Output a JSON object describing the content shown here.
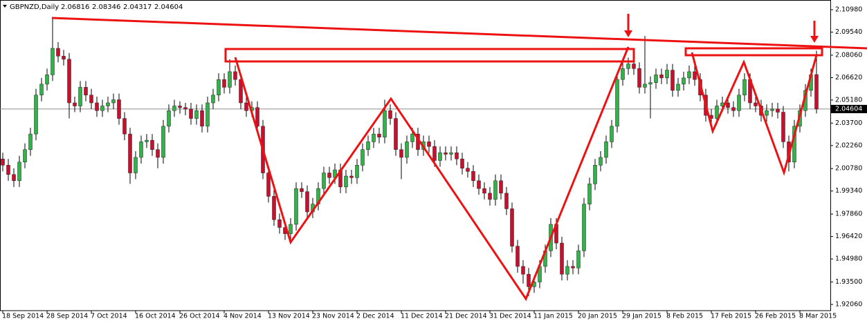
{
  "chart_data": {
    "type": "candlestick",
    "title": "GBPNZD,Daily",
    "up_color": "#33b24a",
    "down_color": "#c8102e",
    "wick_color": "#000000",
    "price_line_color": "#8c8c8c",
    "ylim": [
      1.9166,
      2.1147
    ],
    "yticks": [
      {
        "value": 2.1098,
        "label": "2.10980"
      },
      {
        "value": 2.0954,
        "label": "2.09540"
      },
      {
        "value": 2.0806,
        "label": "2.08060"
      },
      {
        "value": 2.0662,
        "label": "2.06620"
      },
      {
        "value": 2.0518,
        "label": "2.05180"
      },
      {
        "value": 2.037,
        "label": "2.03700"
      },
      {
        "value": 2.0226,
        "label": "2.02260"
      },
      {
        "value": 2.0078,
        "label": "2.00780"
      },
      {
        "value": 1.9934,
        "label": "1.99340"
      },
      {
        "value": 1.9786,
        "label": "1.97860"
      },
      {
        "value": 1.9642,
        "label": "1.96420"
      },
      {
        "value": 1.9498,
        "label": "1.94980"
      },
      {
        "value": 1.935,
        "label": "1.93500"
      },
      {
        "value": 1.9206,
        "label": "1.92060"
      }
    ],
    "categories": [
      "18 Sep 2014",
      null,
      null,
      null,
      null,
      null,
      null,
      null,
      "28 Sep 2014",
      null,
      null,
      null,
      null,
      null,
      null,
      null,
      "7 Oct 2014",
      null,
      null,
      null,
      null,
      null,
      null,
      null,
      "16 Oct 2014",
      null,
      null,
      null,
      null,
      null,
      null,
      null,
      "26 Oct 2014",
      null,
      null,
      null,
      null,
      null,
      null,
      null,
      "4 Nov 2014",
      null,
      null,
      null,
      null,
      null,
      null,
      null,
      "13 Nov 2014",
      null,
      null,
      null,
      null,
      null,
      null,
      null,
      "23 Nov 2014",
      null,
      null,
      null,
      null,
      null,
      null,
      null,
      "2 Dec 2014",
      null,
      null,
      null,
      null,
      null,
      null,
      null,
      "11 Dec 2014",
      null,
      null,
      null,
      null,
      null,
      null,
      null,
      "21 Dec 2014",
      null,
      null,
      null,
      null,
      null,
      null,
      null,
      "31 Dec 2014",
      null,
      null,
      null,
      null,
      null,
      null,
      null,
      "11 Jan 2015",
      null,
      null,
      null,
      null,
      null,
      null,
      null,
      "20 Jan 2015",
      null,
      null,
      null,
      null,
      null,
      null,
      null,
      "29 Jan 2015",
      null,
      null,
      null,
      null,
      null,
      null,
      null,
      "8 Feb 2015",
      null,
      null,
      null,
      null,
      null,
      null,
      null,
      "17 Feb 2015",
      null,
      null,
      null,
      null,
      null,
      null,
      null,
      "26 Feb 2015",
      null,
      null,
      null,
      null,
      null,
      null,
      null,
      "8 Mar 2015",
      null,
      null,
      null
    ],
    "open": [
      2.014,
      2.01,
      2.004,
      2.0,
      2.012,
      2.02,
      2.03,
      2.055,
      2.062,
      2.068,
      2.085,
      2.08,
      2.078,
      2.05,
      2.048,
      2.06,
      2.055,
      2.05,
      2.045,
      2.048,
      2.05,
      2.052,
      2.04,
      2.03,
      2.005,
      2.015,
      2.025,
      2.026,
      2.02,
      2.015,
      2.035,
      2.045,
      2.048,
      2.047,
      2.046,
      2.04,
      2.045,
      2.035,
      2.05,
      2.055,
      2.065,
      2.06,
      2.07,
      2.065,
      2.05,
      2.045,
      2.047,
      2.035,
      2.005,
      1.99,
      1.975,
      1.97,
      1.966,
      1.972,
      1.995,
      1.993,
      1.98,
      1.985,
      1.995,
      2.005,
      2.002,
      2.007,
      1.996,
      2.003,
      2.002,
      2.01,
      2.02,
      2.025,
      2.03,
      2.028,
      2.045,
      2.04,
      2.02,
      2.015,
      2.025,
      2.03,
      2.02,
      2.025,
      2.022,
      2.013,
      2.018,
      2.017,
      2.018,
      2.014,
      2.008,
      2.006,
      2.0,
      1.995,
      1.992,
      1.988,
      2.0,
      1.992,
      1.982,
      1.958,
      1.945,
      1.94,
      1.932,
      1.935,
      1.945,
      1.955,
      1.972,
      1.96,
      1.94,
      1.945,
      1.944,
      1.955,
      1.985,
      1.998,
      2.01,
      2.015,
      2.025,
      2.035,
      2.065,
      2.072,
      2.075,
      2.072,
      2.06,
      2.062,
      2.063,
      2.068,
      2.066,
      2.071,
      2.058,
      2.062,
      2.066,
      2.07,
      2.065,
      2.055,
      2.042,
      2.04,
      2.048,
      2.05,
      2.047,
      2.045,
      2.055,
      2.065,
      2.05,
      2.048,
      2.042,
      2.045,
      2.046,
      2.044,
      2.025,
      2.012,
      2.035,
      2.045,
      2.058,
      2.06816
    ],
    "high": [
      2.018,
      2.014,
      2.008,
      2.016,
      2.024,
      2.034,
      2.059,
      2.066,
      2.072,
      2.105,
      2.089,
      2.084,
      2.082,
      2.054,
      2.064,
      2.064,
      2.059,
      2.054,
      2.052,
      2.054,
      2.056,
      2.056,
      2.044,
      2.034,
      2.019,
      2.029,
      2.03,
      2.03,
      2.024,
      2.039,
      2.049,
      2.052,
      2.051,
      2.05,
      2.05,
      2.049,
      2.049,
      2.054,
      2.059,
      2.069,
      2.069,
      2.078,
      2.074,
      2.069,
      2.054,
      2.051,
      2.051,
      2.039,
      2.009,
      1.994,
      1.979,
      1.974,
      1.976,
      1.999,
      1.999,
      1.997,
      1.989,
      1.999,
      2.009,
      2.009,
      2.011,
      2.011,
      2.007,
      2.007,
      2.014,
      2.024,
      2.029,
      2.034,
      2.034,
      2.052,
      2.049,
      2.044,
      2.024,
      2.029,
      2.034,
      2.034,
      2.029,
      2.029,
      2.026,
      2.022,
      2.022,
      2.022,
      2.022,
      2.018,
      2.012,
      2.01,
      2.004,
      1.999,
      1.996,
      2.004,
      2.004,
      1.996,
      1.986,
      1.962,
      1.949,
      1.944,
      1.939,
      1.949,
      1.959,
      1.976,
      1.976,
      1.964,
      1.949,
      1.949,
      1.959,
      1.989,
      2.002,
      2.014,
      2.019,
      2.029,
      2.039,
      2.069,
      2.076,
      2.079,
      2.079,
      2.076,
      2.093,
      2.067,
      2.072,
      2.072,
      2.075,
      2.075,
      2.066,
      2.07,
      2.074,
      2.074,
      2.069,
      2.059,
      2.046,
      2.052,
      2.054,
      2.054,
      2.051,
      2.059,
      2.069,
      2.069,
      2.054,
      2.052,
      2.049,
      2.05,
      2.05,
      2.048,
      2.029,
      2.039,
      2.049,
      2.062,
      2.072,
      2.08346
    ],
    "low": [
      2.006,
      2.0,
      1.996,
      1.996,
      2.008,
      2.016,
      2.026,
      2.051,
      2.058,
      2.064,
      2.076,
      2.074,
      2.04,
      2.044,
      2.044,
      2.051,
      2.046,
      2.041,
      2.041,
      2.044,
      2.046,
      2.036,
      2.026,
      1.998,
      2.001,
      2.011,
      2.021,
      2.016,
      2.008,
      2.011,
      2.031,
      2.041,
      2.043,
      2.042,
      2.036,
      2.036,
      2.031,
      2.031,
      2.046,
      2.051,
      2.056,
      2.056,
      2.061,
      2.046,
      2.041,
      2.041,
      2.031,
      2.001,
      1.986,
      1.971,
      1.966,
      1.962,
      1.962,
      1.968,
      1.989,
      1.976,
      1.976,
      1.981,
      1.991,
      1.998,
      1.998,
      1.992,
      1.992,
      1.998,
      1.998,
      2.006,
      2.016,
      2.021,
      2.024,
      2.024,
      2.036,
      2.016,
      2.001,
      2.011,
      2.021,
      2.016,
      2.016,
      2.018,
      2.009,
      2.009,
      2.013,
      2.013,
      2.01,
      2.004,
      2.002,
      1.996,
      1.991,
      1.988,
      1.984,
      1.984,
      1.988,
      1.978,
      1.954,
      1.941,
      1.934,
      1.926,
      1.928,
      1.931,
      1.941,
      1.951,
      1.956,
      1.936,
      1.936,
      1.94,
      1.94,
      1.951,
      1.981,
      1.994,
      2.006,
      2.011,
      2.021,
      2.031,
      2.061,
      2.068,
      2.068,
      2.056,
      2.056,
      2.04,
      2.059,
      2.062,
      2.062,
      2.054,
      2.054,
      2.058,
      2.062,
      2.061,
      2.051,
      2.038,
      2.036,
      2.036,
      2.044,
      2.043,
      2.041,
      2.041,
      2.051,
      2.046,
      2.044,
      2.038,
      2.038,
      2.041,
      2.04,
      2.021,
      2.006,
      2.008,
      2.031,
      2.041,
      2.054,
      2.04317
    ],
    "close": [
      2.01,
      2.004,
      2.0,
      2.012,
      2.02,
      2.03,
      2.055,
      2.062,
      2.068,
      2.085,
      2.08,
      2.078,
      2.05,
      2.048,
      2.06,
      2.055,
      2.05,
      2.045,
      2.048,
      2.05,
      2.052,
      2.04,
      2.03,
      2.005,
      2.015,
      2.025,
      2.026,
      2.02,
      2.015,
      2.035,
      2.045,
      2.048,
      2.047,
      2.046,
      2.04,
      2.045,
      2.035,
      2.05,
      2.055,
      2.065,
      2.06,
      2.07,
      2.065,
      2.05,
      2.045,
      2.047,
      2.035,
      2.005,
      1.99,
      1.975,
      1.97,
      1.966,
      1.972,
      1.995,
      1.993,
      1.98,
      1.985,
      1.995,
      2.005,
      2.002,
      2.007,
      1.996,
      2.003,
      2.002,
      2.01,
      2.02,
      2.025,
      2.03,
      2.028,
      2.045,
      2.04,
      2.02,
      2.015,
      2.025,
      2.03,
      2.02,
      2.025,
      2.022,
      2.013,
      2.018,
      2.017,
      2.018,
      2.014,
      2.008,
      2.006,
      2.0,
      1.995,
      1.992,
      1.988,
      2.0,
      1.992,
      1.982,
      1.958,
      1.945,
      1.94,
      1.932,
      1.935,
      1.945,
      1.955,
      1.972,
      1.96,
      1.94,
      1.945,
      1.944,
      1.955,
      1.985,
      1.998,
      2.01,
      2.015,
      2.025,
      2.035,
      2.065,
      2.072,
      2.075,
      2.072,
      2.06,
      2.062,
      2.063,
      2.068,
      2.066,
      2.071,
      2.058,
      2.062,
      2.066,
      2.07,
      2.065,
      2.055,
      2.042,
      2.04,
      2.048,
      2.05,
      2.047,
      2.045,
      2.055,
      2.065,
      2.05,
      2.048,
      2.042,
      2.045,
      2.046,
      2.044,
      2.025,
      2.012,
      2.035,
      2.045,
      2.058,
      2.068,
      2.04604
    ]
  }
}
